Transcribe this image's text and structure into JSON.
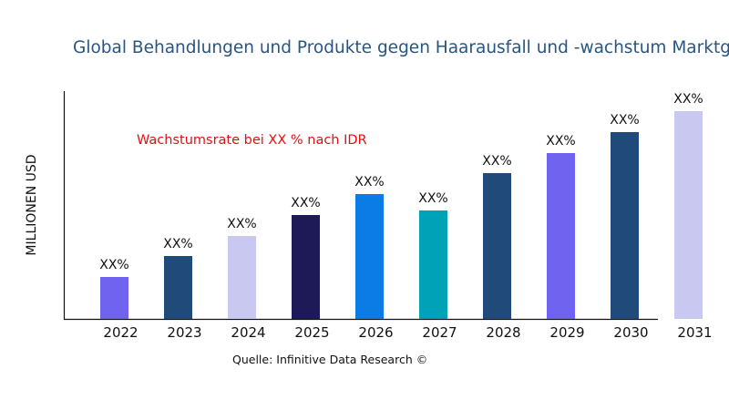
{
  "chart_data": {
    "type": "bar",
    "title": "Global Behandlungen und Produkte gegen Haarausfall und -wachstum Marktg",
    "ylabel": "MILLIONEN USD",
    "xlabel": "",
    "annotation": "Wachstumsrate bei XX % nach IDR",
    "source": "Quelle: Infinitive Data Research ©",
    "categories": [
      "2022",
      "2023",
      "2024",
      "2025",
      "2026",
      "2027",
      "2028",
      "2029",
      "2030",
      "2031"
    ],
    "values": [
      46,
      69,
      91,
      114,
      137,
      119,
      160,
      182,
      205,
      228
    ],
    "data_labels": [
      "XX%",
      "XX%",
      "XX%",
      "XX%",
      "XX%",
      "XX%",
      "XX%",
      "XX%",
      "XX%",
      "XX%"
    ],
    "colors": [
      "#7063f0",
      "#1f4a7a",
      "#c8c8f0",
      "#1e1a58",
      "#0b7be6",
      "#00a2b8",
      "#1f4a7a",
      "#7063f0",
      "#1f4a7a",
      "#c8c8f0"
    ],
    "ylim": [
      0,
      250
    ],
    "grid": false,
    "legend": "none"
  }
}
